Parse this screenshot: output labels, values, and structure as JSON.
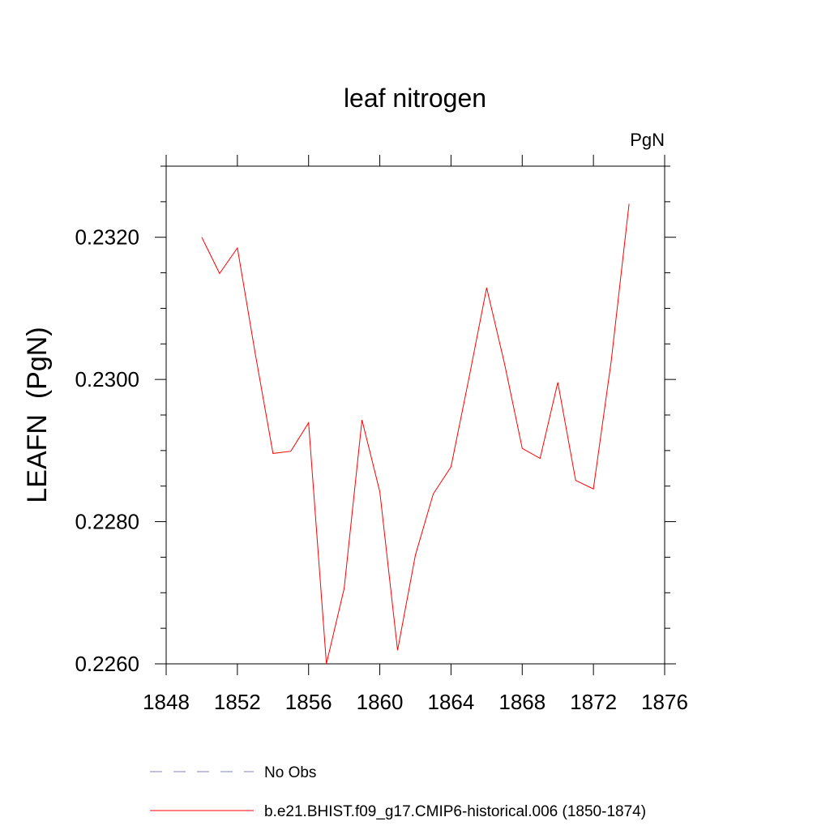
{
  "chart_data": {
    "type": "line",
    "title": "leaf nitrogen",
    "units_label": "PgN",
    "ylabel": "LEAFN  (PgN)",
    "xlabel": "",
    "xlim": [
      1848,
      1876
    ],
    "ylim": [
      0.226,
      0.233
    ],
    "x_ticks": [
      1848,
      1852,
      1856,
      1860,
      1864,
      1868,
      1872,
      1876
    ],
    "x_tick_labels": [
      "1848",
      "1852",
      "1856",
      "1860",
      "1864",
      "1868",
      "1872",
      "1876"
    ],
    "y_ticks": [
      0.226,
      0.228,
      0.23,
      0.232
    ],
    "y_tick_labels": [
      "0.2260",
      "0.2280",
      "0.2300",
      "0.2320"
    ],
    "grid": false,
    "legend_position": "bottom",
    "series": [
      {
        "name": "b.e21.BHIST.f09_g17.CMIP6-historical.006 (1850-1874)",
        "color": "#ff0000",
        "x": [
          1850,
          1851,
          1852,
          1853,
          1854,
          1855,
          1856,
          1857,
          1858,
          1859,
          1860,
          1861,
          1862,
          1863,
          1864,
          1865,
          1866,
          1867,
          1868,
          1869,
          1870,
          1871,
          1872,
          1873,
          1874
        ],
        "y": [
          0.232,
          0.23149,
          0.23185,
          0.23037,
          0.22896,
          0.22899,
          0.22939,
          0.226,
          0.22706,
          0.22943,
          0.22842,
          0.22619,
          0.22753,
          0.22839,
          0.22877,
          0.23001,
          0.23129,
          0.23023,
          0.22903,
          0.22889,
          0.22996,
          0.22858,
          0.22846,
          0.23026,
          0.23247
        ]
      }
    ],
    "legend": [
      {
        "label": "No Obs",
        "color": "#8080c0",
        "dashed": true
      },
      {
        "label": "b.e21.BHIST.f09_g17.CMIP6-historical.006 (1850-1874)",
        "color": "#ff0000",
        "dashed": false
      }
    ]
  }
}
